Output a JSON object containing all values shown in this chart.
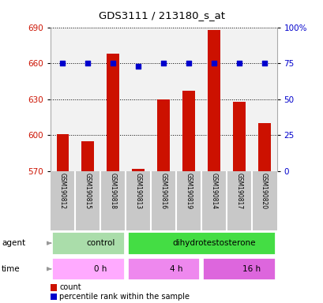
{
  "title": "GDS3111 / 213180_s_at",
  "samples": [
    "GSM190812",
    "GSM190815",
    "GSM190818",
    "GSM190813",
    "GSM190816",
    "GSM190819",
    "GSM190814",
    "GSM190817",
    "GSM190820"
  ],
  "counts": [
    601,
    595,
    668,
    572,
    630,
    637,
    688,
    628,
    610
  ],
  "percentiles": [
    75,
    75,
    75,
    73,
    75,
    75,
    75,
    75,
    75
  ],
  "ylim_left": [
    570,
    690
  ],
  "ylim_right": [
    0,
    100
  ],
  "yticks_left": [
    570,
    600,
    630,
    660,
    690
  ],
  "yticks_right": [
    0,
    25,
    50,
    75,
    100
  ],
  "yticklabels_right": [
    "0",
    "25",
    "50",
    "75",
    "100%"
  ],
  "bar_color": "#CC1100",
  "dot_color": "#0000CC",
  "agent_groups": [
    {
      "label": "control",
      "start": 0,
      "end": 3,
      "color": "#AADDAA"
    },
    {
      "label": "dihydrotestosterone",
      "start": 3,
      "end": 9,
      "color": "#44DD44"
    }
  ],
  "time_groups": [
    {
      "label": "0 h",
      "start": 0,
      "end": 3,
      "color": "#FFAAFF"
    },
    {
      "label": "4 h",
      "start": 3,
      "end": 6,
      "color": "#EE88EE"
    },
    {
      "label": "16 h",
      "start": 6,
      "end": 9,
      "color": "#DD66DD"
    }
  ],
  "legend_count_label": "count",
  "legend_pct_label": "percentile rank within the sample",
  "plot_bg": "#F2F2F2",
  "tick_color_left": "#CC1100",
  "tick_color_right": "#0000CC",
  "bar_width": 0.5,
  "label_bg": "#C8C8C8"
}
